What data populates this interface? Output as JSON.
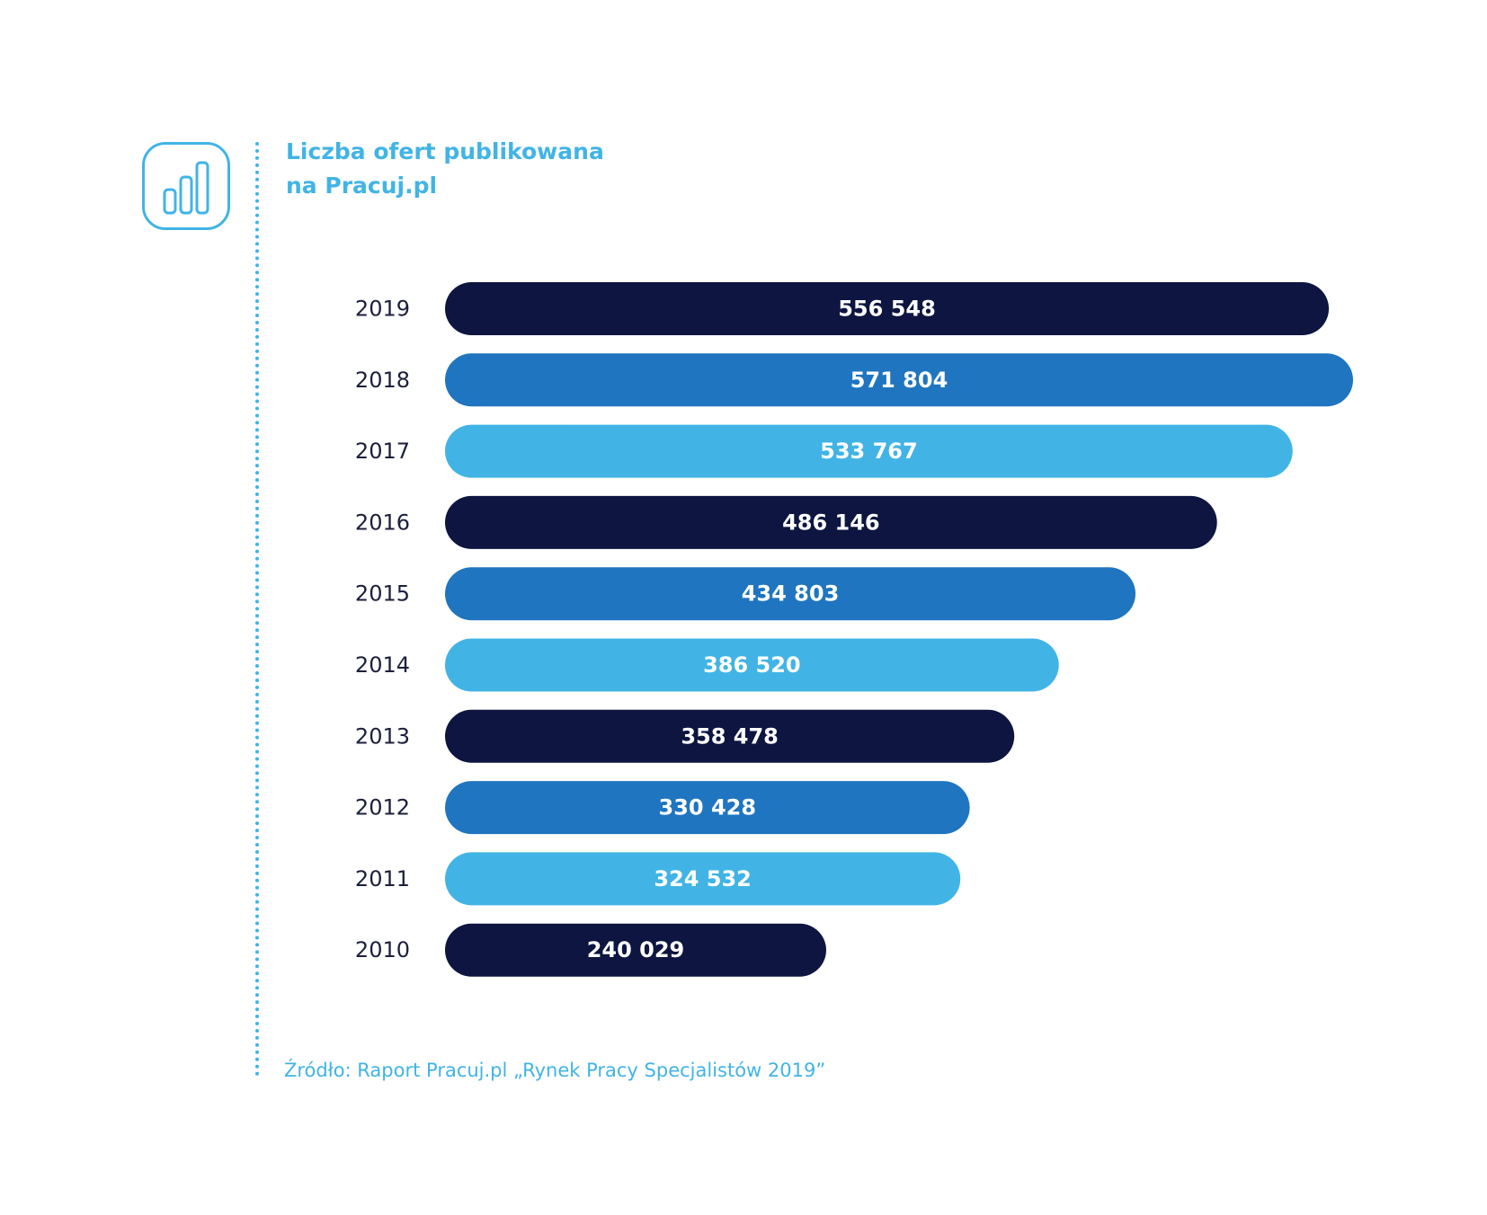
{
  "header": {
    "icon": "bar-chart-icon",
    "title_line1": "Liczba ofert publikowana",
    "title_line2": "na Pracuj.pl"
  },
  "source": "Źródło: Raport Pracuj.pl „Rynek Pracy Specjalistów 2019”",
  "colors": {
    "accent": "#41b4e5",
    "navy": "#0d1540",
    "mid_blue": "#1f75bf",
    "light_blue": "#41b4e5",
    "year_text": "#1c1f3a"
  },
  "chart_data": {
    "type": "bar",
    "orientation": "horizontal",
    "title": "Liczba ofert publikowana na Pracuj.pl",
    "categories": [
      "2019",
      "2018",
      "2017",
      "2016",
      "2015",
      "2014",
      "2013",
      "2012",
      "2011",
      "2010"
    ],
    "values": [
      556548,
      571804,
      533767,
      486146,
      434803,
      386520,
      358478,
      330428,
      324532,
      240029
    ],
    "value_labels": [
      "556 548",
      "571 804",
      "533 767",
      "486 146",
      "434 803",
      "386 520",
      "358 478",
      "330 428",
      "324 532",
      "240 029"
    ],
    "bar_colors": [
      "#0d1540",
      "#1f75bf",
      "#41b4e5",
      "#0d1540",
      "#1f75bf",
      "#41b4e5",
      "#0d1540",
      "#1f75bf",
      "#41b4e5",
      "#0d1540"
    ],
    "xlim": [
      0,
      571804
    ],
    "grid": false,
    "legend": "none"
  }
}
